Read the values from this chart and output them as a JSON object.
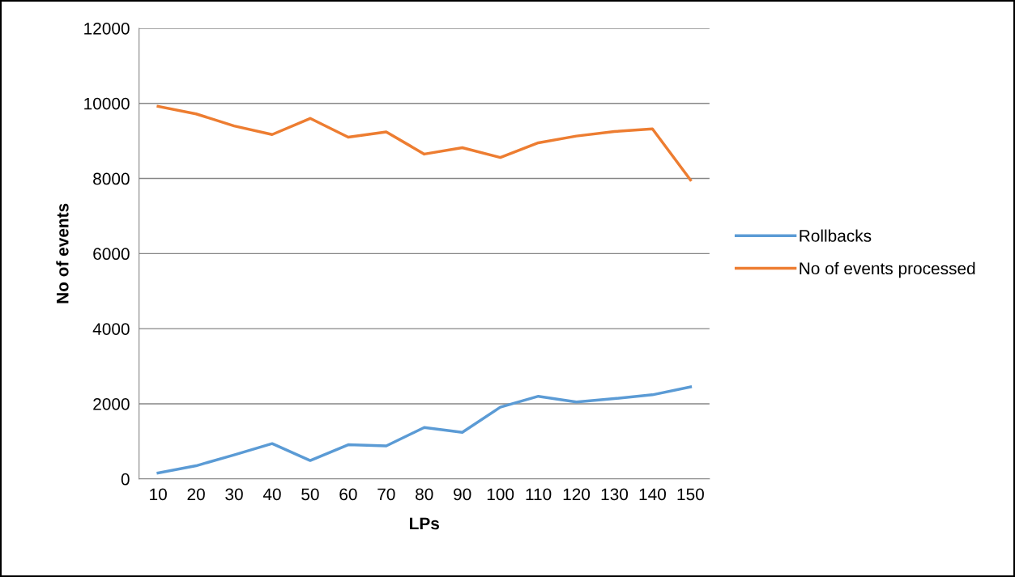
{
  "chart_data": {
    "type": "line",
    "xlabel": "LPs",
    "ylabel": "No of events",
    "categories": [
      "10",
      "20",
      "30",
      "40",
      "50",
      "60",
      "70",
      "80",
      "90",
      "100",
      "110",
      "120",
      "130",
      "140",
      "150"
    ],
    "series": [
      {
        "name": "Rollbacks",
        "color": "#5b9bd5",
        "values": [
          160,
          350,
          640,
          940,
          490,
          910,
          880,
          1370,
          1240,
          1910,
          2200,
          2050,
          2140,
          2240,
          2450
        ]
      },
      {
        "name": "No of events processed",
        "color": "#ed7d31",
        "values": [
          9920,
          9720,
          9400,
          9170,
          9600,
          9100,
          9240,
          8650,
          8820,
          8560,
          8950,
          9130,
          9250,
          9320,
          7960
        ]
      }
    ],
    "ylim": [
      0,
      12000
    ],
    "yticks": [
      0,
      2000,
      4000,
      6000,
      8000,
      10000,
      12000
    ],
    "grid": "y",
    "legend": "right",
    "marker": "none",
    "line_style": "solid"
  }
}
